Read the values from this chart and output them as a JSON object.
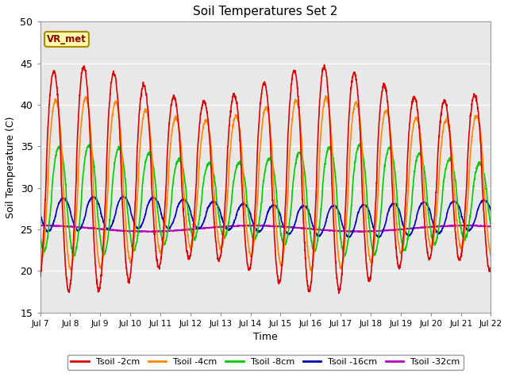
{
  "title": "Soil Temperatures Set 2",
  "xlabel": "Time",
  "ylabel": "Soil Temperature (C)",
  "ylim": [
    15,
    50
  ],
  "yticks": [
    15,
    20,
    25,
    30,
    35,
    40,
    45,
    50
  ],
  "xtick_labels": [
    "Jul 7",
    "Jul 8",
    "Jul 9",
    "Jul 10",
    "Jul 11",
    "Jul 12",
    "Jul 13",
    "Jul 14",
    "Jul 15",
    "Jul 16",
    "Jul 17",
    "Jul 18",
    "Jul 19",
    "Jul 20",
    "Jul 21",
    "Jul 22"
  ],
  "series_colors": {
    "Tsoil -2cm": "#dd0000",
    "Tsoil -4cm": "#ff8800",
    "Tsoil -8cm": "#00cc00",
    "Tsoil -16cm": "#0000bb",
    "Tsoil -32cm": "#bb00bb"
  },
  "annotation_text": "VR_met",
  "background_color": "#e8e8e8",
  "fig_background": "#ffffff",
  "line_width": 1.2
}
